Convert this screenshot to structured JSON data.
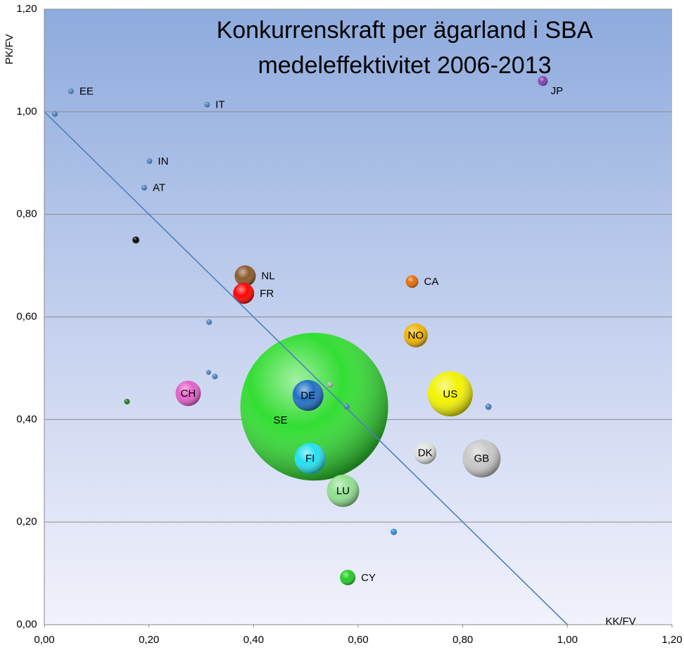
{
  "chart_data": {
    "type": "bubble",
    "title": [
      "Konkurrenskraft per ägarland i SBA",
      "medeleffektivitet 2006-2013"
    ],
    "x_label": "KK/FV",
    "y_label": "PK/FV",
    "labels": [
      "EE",
      null,
      "IT",
      "IN",
      "AT",
      null,
      "NL",
      "FR",
      "CA",
      "NO",
      null,
      null,
      null,
      "CH",
      null,
      "SE",
      "DE",
      null,
      null,
      "US",
      null,
      "DK",
      "GB",
      "FI",
      "LU",
      null,
      "CY",
      "JP"
    ],
    "x": [
      0.051,
      0.02,
      0.311,
      0.201,
      0.191,
      0.175,
      0.384,
      0.381,
      0.703,
      0.71,
      0.315,
      0.314,
      0.326,
      0.275,
      0.158,
      0.516,
      0.504,
      0.546,
      0.578,
      0.776,
      0.849,
      0.728,
      0.836,
      0.508,
      0.571,
      0.668,
      0.58,
      0.953
    ],
    "y": [
      1.04,
      0.996,
      1.014,
      0.904,
      0.852,
      0.75,
      0.68,
      0.646,
      0.669,
      0.564,
      0.59,
      0.492,
      0.484,
      0.451,
      0.435,
      0.425,
      0.447,
      0.468,
      0.425,
      0.45,
      0.425,
      0.335,
      0.324,
      0.324,
      0.261,
      0.181,
      0.092,
      1.06
    ],
    "sizes": [
      4,
      4,
      4,
      4,
      4,
      6,
      56,
      56,
      20,
      72,
      4,
      3,
      4,
      81,
      4,
      2756,
      121,
      4,
      4,
      256,
      5,
      64,
      182,
      121,
      132,
      5,
      30,
      12
    ],
    "colors": [
      "#4f81bd",
      "#4f81bd",
      "#4f81bd",
      "#4f81bd",
      "#4f81bd",
      "#000000",
      "#8b5a2b",
      "#ff0000",
      "#e36c09",
      "#f0b400",
      "#4f81bd",
      "#4f81bd",
      "#4f81bd",
      "#e35fc8",
      "#1e7b1e",
      "#33dd33",
      "#1f6fc5",
      "#aaaaaa",
      "#4f81bd",
      "#f2f200",
      "#4f81bd",
      "#e0e0e0",
      "#c8c8c8",
      "#22e0f0",
      "#90e090",
      "#1f8fe0",
      "#22cc22",
      "#8040b0"
    ],
    "trend_line": {
      "x": [
        0,
        1
      ],
      "y": [
        1,
        0
      ],
      "color": "#4f81bd"
    },
    "xlim": [
      0,
      1.2
    ],
    "ylim": [
      0,
      1.2
    ],
    "xticks": [
      {
        "value": 0,
        "label": "0,00"
      },
      {
        "value": 0.2,
        "label": "0,20"
      },
      {
        "value": 0.4,
        "label": "0,40"
      },
      {
        "value": 0.6,
        "label": "0,60"
      },
      {
        "value": 0.8,
        "label": "0,80"
      },
      {
        "value": 1,
        "label": "1,00"
      },
      {
        "value": 1.2,
        "label": "1,20"
      }
    ],
    "yticks": [
      {
        "value": 0,
        "label": "0,00"
      },
      {
        "value": 0.2,
        "label": "0,20"
      },
      {
        "value": 0.4,
        "label": "0,40"
      },
      {
        "value": 0.6,
        "label": "0,60"
      },
      {
        "value": 0.8,
        "label": "0,80"
      },
      {
        "value": 1,
        "label": "1,00"
      },
      {
        "value": 1.2,
        "label": "1,20"
      }
    ],
    "grid": true
  }
}
